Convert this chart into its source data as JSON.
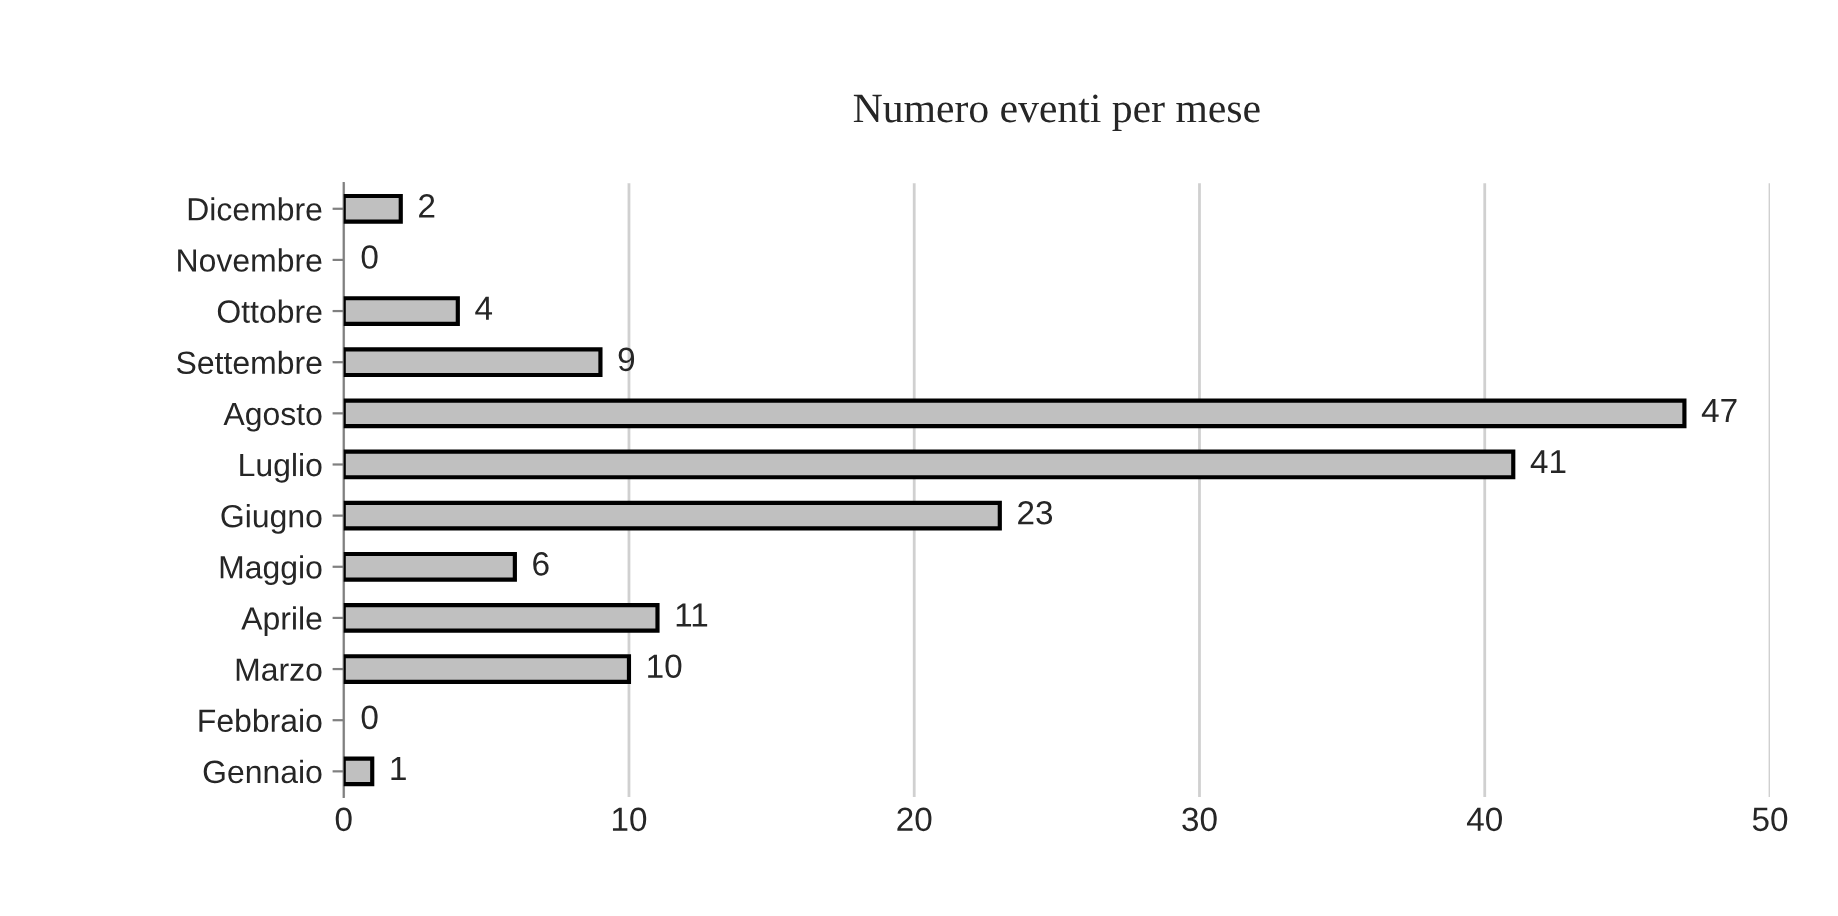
{
  "chart_data": {
    "type": "bar",
    "orientation": "horizontal",
    "title": "Numero eventi per mese",
    "categories": [
      "Dicembre",
      "Novembre",
      "Ottobre",
      "Settembre",
      "Agosto",
      "Luglio",
      "Giugno",
      "Maggio",
      "Aprile",
      "Marzo",
      "Febbraio",
      "Gennaio"
    ],
    "values": [
      2,
      0,
      4,
      9,
      47,
      41,
      23,
      6,
      11,
      10,
      0,
      1
    ],
    "color": "#c0c0c0",
    "xlim": [
      0,
      50
    ],
    "xticks": [
      0,
      10,
      20,
      30,
      40,
      50
    ],
    "grid": "x",
    "data_labels": true,
    "legend": false
  }
}
